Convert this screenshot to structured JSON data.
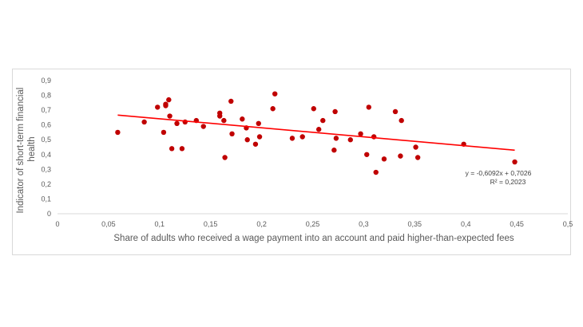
{
  "chart_data": {
    "type": "scatter",
    "title": "",
    "xlabel": "Share of adults who received a wage payment into an account and paid higher-than-expected fees",
    "ylabel_lines": [
      "Indicator of short-term  financial",
      "health"
    ],
    "xlim": [
      0,
      0.5
    ],
    "ylim": [
      0,
      0.9
    ],
    "x_ticks": [
      "0",
      "0,05",
      "0,1",
      "0,15",
      "0,2",
      "0,25",
      "0,3",
      "0,35",
      "0,4",
      "0,45",
      "0,5"
    ],
    "y_ticks": [
      "0",
      "0,1",
      "0,2",
      "0,3",
      "0,4",
      "0,5",
      "0,6",
      "0,7",
      "0,8",
      "0,9"
    ],
    "grid": false,
    "colors": {
      "points": "#c00000",
      "trendline": "#ff0000"
    },
    "points": [
      {
        "x": 0.059,
        "y": 0.55
      },
      {
        "x": 0.085,
        "y": 0.62
      },
      {
        "x": 0.098,
        "y": 0.72
      },
      {
        "x": 0.104,
        "y": 0.55
      },
      {
        "x": 0.106,
        "y": 0.74
      },
      {
        "x": 0.106,
        "y": 0.73
      },
      {
        "x": 0.109,
        "y": 0.77
      },
      {
        "x": 0.11,
        "y": 0.66
      },
      {
        "x": 0.112,
        "y": 0.44
      },
      {
        "x": 0.117,
        "y": 0.61
      },
      {
        "x": 0.122,
        "y": 0.44
      },
      {
        "x": 0.125,
        "y": 0.62
      },
      {
        "x": 0.136,
        "y": 0.63
      },
      {
        "x": 0.143,
        "y": 0.59
      },
      {
        "x": 0.159,
        "y": 0.68
      },
      {
        "x": 0.159,
        "y": 0.66
      },
      {
        "x": 0.163,
        "y": 0.63
      },
      {
        "x": 0.164,
        "y": 0.38
      },
      {
        "x": 0.17,
        "y": 0.76
      },
      {
        "x": 0.171,
        "y": 0.54
      },
      {
        "x": 0.181,
        "y": 0.64
      },
      {
        "x": 0.185,
        "y": 0.58
      },
      {
        "x": 0.186,
        "y": 0.5
      },
      {
        "x": 0.194,
        "y": 0.47
      },
      {
        "x": 0.197,
        "y": 0.61
      },
      {
        "x": 0.198,
        "y": 0.52
      },
      {
        "x": 0.211,
        "y": 0.71
      },
      {
        "x": 0.213,
        "y": 0.81
      },
      {
        "x": 0.23,
        "y": 0.51
      },
      {
        "x": 0.24,
        "y": 0.52
      },
      {
        "x": 0.251,
        "y": 0.71
      },
      {
        "x": 0.256,
        "y": 0.57
      },
      {
        "x": 0.26,
        "y": 0.63
      },
      {
        "x": 0.271,
        "y": 0.43
      },
      {
        "x": 0.272,
        "y": 0.69
      },
      {
        "x": 0.273,
        "y": 0.51
      },
      {
        "x": 0.287,
        "y": 0.5
      },
      {
        "x": 0.297,
        "y": 0.54
      },
      {
        "x": 0.303,
        "y": 0.4
      },
      {
        "x": 0.305,
        "y": 0.72
      },
      {
        "x": 0.31,
        "y": 0.52
      },
      {
        "x": 0.312,
        "y": 0.28
      },
      {
        "x": 0.32,
        "y": 0.37
      },
      {
        "x": 0.331,
        "y": 0.69
      },
      {
        "x": 0.336,
        "y": 0.39
      },
      {
        "x": 0.337,
        "y": 0.63
      },
      {
        "x": 0.351,
        "y": 0.45
      },
      {
        "x": 0.353,
        "y": 0.38
      },
      {
        "x": 0.398,
        "y": 0.47
      },
      {
        "x": 0.448,
        "y": 0.35
      }
    ],
    "trendline": {
      "type": "linear",
      "slope": -0.6092,
      "intercept": 0.7026,
      "x_range": [
        0.059,
        0.448
      ],
      "equation": "y = -0,6092x + 0,7026",
      "r_squared": "R² = 0,2023"
    }
  }
}
